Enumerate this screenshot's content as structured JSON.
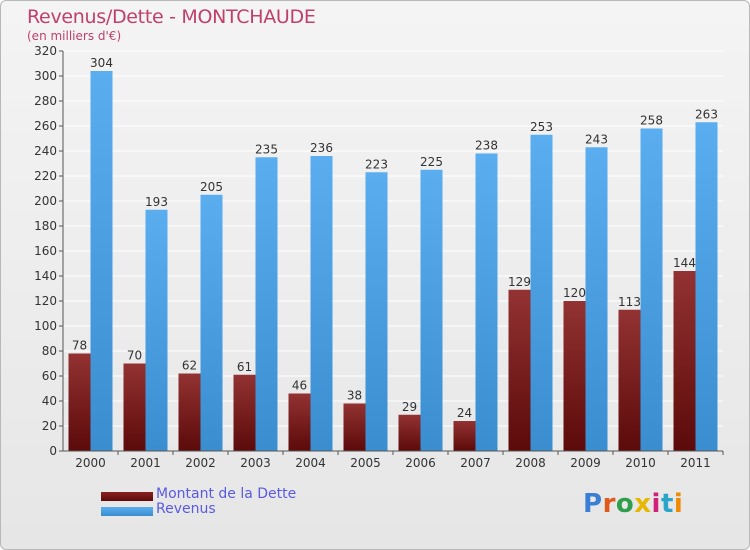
{
  "title": "Revenus/Dette - MONTCHAUDE",
  "subtitle": "(en milliers d'€)",
  "logo": "Proxiti",
  "colors": {
    "debt": "#7a1a1a",
    "revenue": "#4a9fe0",
    "title": "#c0406a",
    "legend_text": "#5a5ae0"
  },
  "chart_data": {
    "type": "bar",
    "categories": [
      "2000",
      "2001",
      "2002",
      "2003",
      "2004",
      "2005",
      "2006",
      "2007",
      "2008",
      "2009",
      "2010",
      "2011"
    ],
    "series": [
      {
        "name": "Montant de la Dette",
        "values": [
          78,
          70,
          62,
          61,
          46,
          38,
          29,
          24,
          129,
          120,
          113,
          144
        ]
      },
      {
        "name": "Revenus",
        "values": [
          304,
          193,
          205,
          235,
          236,
          223,
          225,
          238,
          253,
          243,
          258,
          263
        ]
      }
    ],
    "ylim": [
      0,
      320
    ],
    "yticks": [
      0,
      20,
      40,
      60,
      80,
      100,
      120,
      140,
      160,
      180,
      200,
      220,
      240,
      260,
      280,
      300,
      320
    ],
    "grid": true,
    "legend": "bottom-left"
  }
}
